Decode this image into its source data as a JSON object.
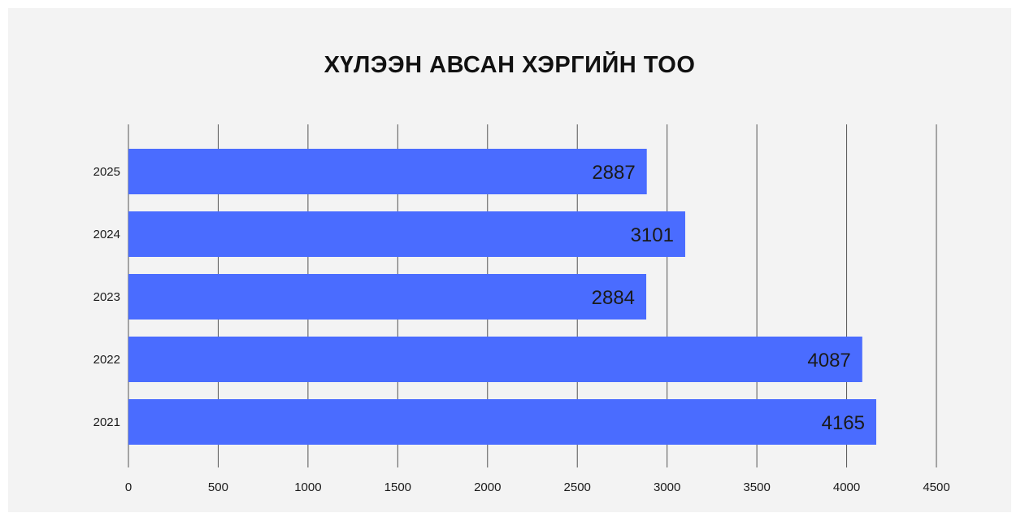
{
  "chart_data": {
    "type": "bar",
    "orientation": "horizontal",
    "title": "ХҮЛЭЭН АВСАН ХЭРГИЙН ТОО",
    "categories": [
      "2025",
      "2024",
      "2023",
      "2022",
      "2021"
    ],
    "values": [
      2887,
      3101,
      2884,
      4087,
      4165
    ],
    "data_labels": [
      "2887",
      "3101",
      "2884",
      "4087",
      "4165"
    ],
    "xlim": [
      0,
      4500
    ],
    "x_ticks": [
      0,
      500,
      1000,
      1500,
      2000,
      2500,
      3000,
      3500,
      4000,
      4500
    ],
    "grid": true,
    "bar_color": "#4a6cff",
    "background_color": "#f3f3f3"
  }
}
